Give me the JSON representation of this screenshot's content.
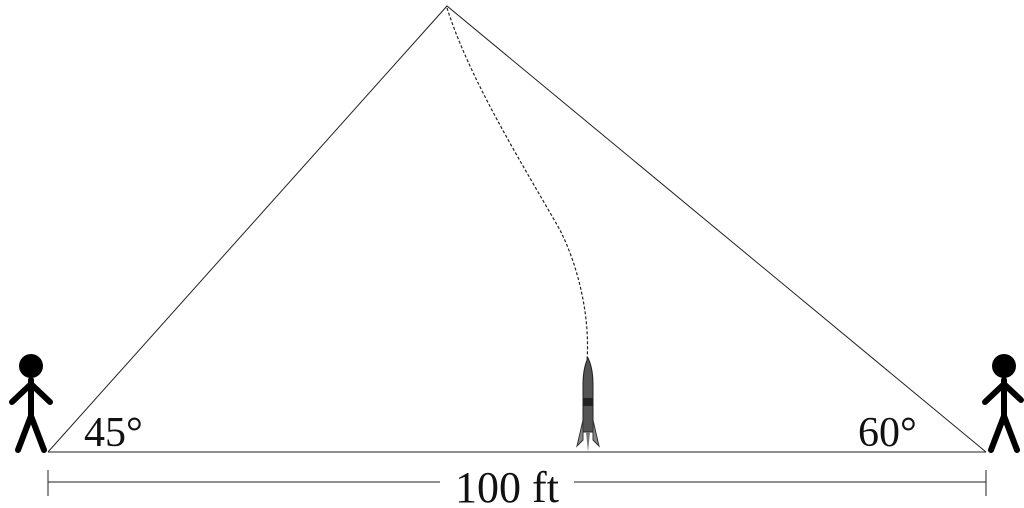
{
  "labels": {
    "left_angle": "45°",
    "right_angle": "60°",
    "distance": "100 ft"
  }
}
